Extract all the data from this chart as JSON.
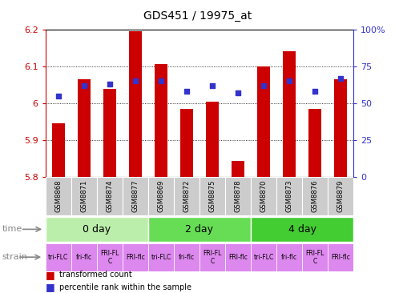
{
  "title": "GDS451 / 19975_at",
  "samples": [
    "GSM8868",
    "GSM8871",
    "GSM8874",
    "GSM8877",
    "GSM8869",
    "GSM8872",
    "GSM8875",
    "GSM8878",
    "GSM8870",
    "GSM8873",
    "GSM8876",
    "GSM8879"
  ],
  "transformed_count": [
    5.945,
    6.065,
    6.04,
    6.195,
    6.105,
    5.985,
    6.005,
    5.845,
    6.1,
    6.14,
    5.985,
    6.065
  ],
  "percentile_rank": [
    55,
    62,
    63,
    65,
    65,
    58,
    62,
    57,
    62,
    65,
    58,
    67
  ],
  "ymin": 5.8,
  "ymax": 6.2,
  "yticks": [
    5.8,
    5.9,
    6.0,
    6.1,
    6.2
  ],
  "ytick_labels": [
    "5.8",
    "5.9",
    "6",
    "6.1",
    "6.2"
  ],
  "right_yticks": [
    0,
    25,
    50,
    75,
    100
  ],
  "right_ytick_labels": [
    "0",
    "25",
    "50",
    "75",
    "100%"
  ],
  "bar_color": "#cc0000",
  "dot_color": "#3333cc",
  "time_groups": [
    {
      "label": "0 day",
      "start": 0,
      "end": 4,
      "color": "#bbeeaa"
    },
    {
      "label": "2 day",
      "start": 4,
      "end": 8,
      "color": "#66dd55"
    },
    {
      "label": "4 day",
      "start": 8,
      "end": 12,
      "color": "#44cc33"
    }
  ],
  "strain_labels": [
    "tri-FLC",
    "fri-flc",
    "FRI-FL\nC",
    "FRI-flc",
    "tri-FLC",
    "fri-flc",
    "FRI-FL\nC",
    "FRI-flc",
    "tri-FLC",
    "fri-flc",
    "FRI-FL\nC",
    "FRI-flc"
  ],
  "strain_bg": "#dd88ee",
  "sample_label_bg": "#cccccc",
  "border_color": "#000000",
  "legend_red_label": "transformed count",
  "legend_blue_label": "percentile rank within the sample"
}
